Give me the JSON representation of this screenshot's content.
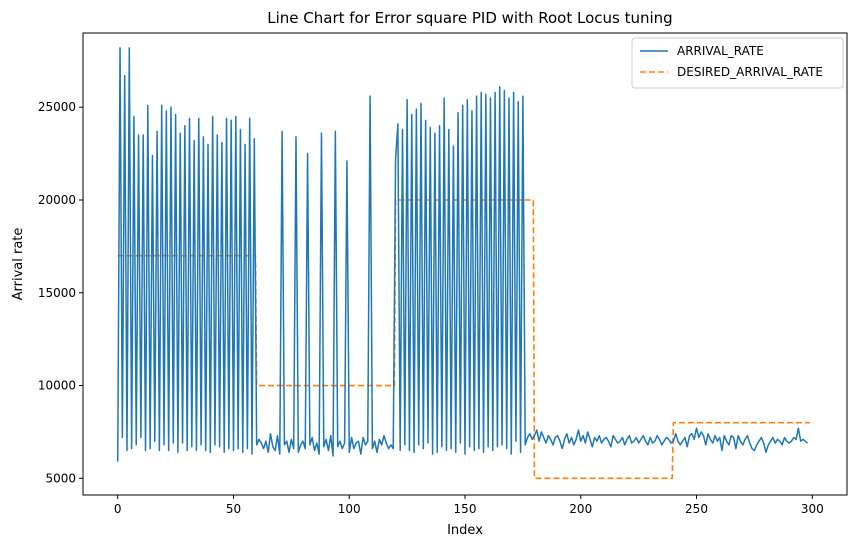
{
  "chart_data": {
    "type": "line",
    "title": "Line Chart for Error square PID with Root Locus tuning",
    "xlabel": "Index",
    "ylabel": "Arrival rate",
    "xlim": [
      -15,
      315
    ],
    "ylim": [
      4100,
      29000
    ],
    "xticks": [
      0,
      50,
      100,
      150,
      200,
      250,
      300
    ],
    "yticks": [
      5000,
      10000,
      15000,
      20000,
      25000
    ],
    "grid": false,
    "legend_position": "upper right",
    "series": [
      {
        "name": "ARRIVAL_RATE",
        "color": "#1f77b4",
        "style": "solid",
        "x_start": 0,
        "x_step": 1,
        "values": [
          5900,
          28200,
          7200,
          26700,
          6500,
          28200,
          6600,
          24500,
          6800,
          23500,
          7200,
          23500,
          6500,
          25100,
          6600,
          22400,
          7000,
          23700,
          6500,
          25100,
          6800,
          24800,
          6500,
          25000,
          6900,
          24600,
          6400,
          23600,
          6900,
          24000,
          6500,
          24400,
          6700,
          23200,
          6500,
          24400,
          6800,
          23400,
          6500,
          23000,
          6400,
          24500,
          6800,
          23500,
          6700,
          23100,
          6400,
          24400,
          6600,
          24300,
          6500,
          24500,
          6600,
          23800,
          6400,
          23000,
          6600,
          24400,
          6300,
          23300,
          6800,
          7100,
          6900,
          6600,
          7000,
          6400,
          7400,
          6700,
          6500,
          7300,
          6300,
          23700,
          6800,
          7000,
          6400,
          7100,
          6600,
          23400,
          6400,
          6800,
          7000,
          6600,
          22500,
          6800,
          7200,
          6500,
          6900,
          6300,
          23600,
          6700,
          7100,
          6500,
          7300,
          6200,
          23700,
          6700,
          7000,
          6600,
          6900,
          22100,
          6400,
          7200,
          6600,
          6900,
          7000,
          6300,
          7200,
          6800,
          7000,
          25600,
          6600,
          7000,
          6400,
          7100,
          6800,
          7300,
          6900,
          6600,
          6800,
          6600,
          22200,
          24100,
          6500,
          23800,
          6800,
          25400,
          6500,
          24600,
          6400,
          24900,
          6800,
          25200,
          6600,
          24300,
          6900,
          23900,
          6300,
          23600,
          6400,
          24000,
          6700,
          25500,
          6500,
          23800,
          6600,
          22900,
          6400,
          24700,
          6900,
          25100,
          6300,
          25400,
          6700,
          24800,
          6500,
          25600,
          6600,
          25800,
          6400,
          25700,
          6700,
          25500,
          6500,
          25800,
          6700,
          26100,
          6800,
          25900,
          6600,
          25500,
          6300,
          25800,
          7000,
          25300,
          6400,
          25600,
          6800,
          7200,
          7400,
          7100,
          7300,
          7600,
          7000,
          7500,
          7200,
          6900,
          7300,
          7100,
          6800,
          7200,
          7300,
          7000,
          6600,
          7100,
          7400,
          6900,
          7200,
          6800,
          7100,
          7600,
          7000,
          7300,
          6900,
          7500,
          7100,
          6700,
          7200,
          7000,
          7300,
          6900,
          7100,
          7200,
          7000,
          6700,
          7300,
          7100,
          6900,
          7000,
          7200,
          6800,
          7100,
          7300,
          6900,
          7000,
          7200,
          6900,
          7100,
          7300,
          7000,
          6800,
          7200,
          6900,
          7000,
          7300,
          7100,
          6800,
          7000,
          7200,
          7100,
          6900,
          7000,
          7400,
          7000,
          6800,
          7000,
          7200,
          6700,
          7300,
          7400,
          7100,
          7700,
          7200,
          7500,
          7300,
          6800,
          7400,
          7100,
          6900,
          7300,
          7000,
          7200,
          6500,
          7300,
          7000,
          6800,
          7300,
          7200,
          6600,
          7300,
          7000,
          6800,
          7100,
          7300,
          6900,
          6600,
          6500,
          6800,
          7000,
          7200,
          6900,
          6400,
          6800,
          7000,
          7200,
          6900,
          7100,
          7000,
          6800,
          7200,
          7000,
          6900,
          7000,
          7200,
          7100,
          7700,
          7000,
          7100,
          7000,
          6900
        ]
      },
      {
        "name": "DESIRED_ARRIVAL_RATE",
        "color": "#ff7f0e",
        "style": "dashed",
        "step_points": [
          {
            "x": 0,
            "y": 17000
          },
          {
            "x": 59.5,
            "y": 17000
          },
          {
            "x": 60,
            "y": 10000
          },
          {
            "x": 119.5,
            "y": 10000
          },
          {
            "x": 120,
            "y": 20000
          },
          {
            "x": 179.5,
            "y": 20000
          },
          {
            "x": 180,
            "y": 5000
          },
          {
            "x": 239.5,
            "y": 5000
          },
          {
            "x": 240,
            "y": 8000
          },
          {
            "x": 299,
            "y": 8000
          }
        ]
      }
    ]
  }
}
